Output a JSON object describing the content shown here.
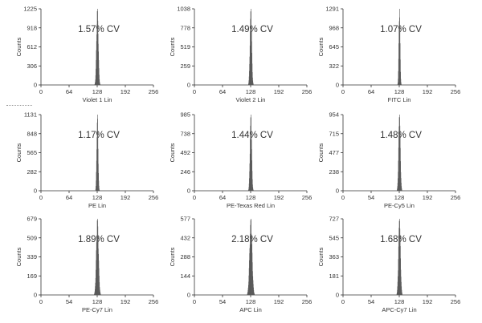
{
  "figure": {
    "ylabel": "Counts",
    "colors": {
      "histogram": "#5a5a5a",
      "axis": "#333333",
      "background": "#ffffff"
    }
  },
  "chart_data": [
    {
      "type": "bar",
      "title": "1.57% CV",
      "xlabel": "Violet 1 Lin",
      "ylabel": "Counts",
      "xlim": [
        0,
        256
      ],
      "x_ticks": [
        "0",
        "64",
        "128",
        "192",
        "256"
      ],
      "ylim": [
        0,
        1225
      ],
      "y_ticks": [
        "0",
        "306",
        "612",
        "918",
        "1225"
      ],
      "peak_x": 128,
      "peak_count": 1225,
      "cv_percent": 1.57
    },
    {
      "type": "bar",
      "title": "1.49% CV",
      "xlabel": "Violet 2 Lin",
      "ylabel": "Counts",
      "xlim": [
        0,
        256
      ],
      "x_ticks": [
        "0",
        "64",
        "128",
        "192",
        "256"
      ],
      "ylim": [
        0,
        1038
      ],
      "y_ticks": [
        "0",
        "259",
        "519",
        "778",
        "1038"
      ],
      "peak_x": 128,
      "peak_count": 1038,
      "cv_percent": 1.49
    },
    {
      "type": "bar",
      "title": "1.07% CV",
      "xlabel": "FITC Lin",
      "ylabel": "Counts",
      "xlim": [
        0,
        256
      ],
      "x_ticks": [
        "0",
        "64",
        "128",
        "192",
        "256"
      ],
      "ylim": [
        0,
        1291
      ],
      "y_ticks": [
        "0",
        "322",
        "645",
        "968",
        "1291"
      ],
      "peak_x": 128,
      "peak_count": 1291,
      "cv_percent": 1.07
    },
    {
      "type": "bar",
      "title": "1.17% CV",
      "xlabel": "PE Lin",
      "ylabel": "Counts",
      "xlim": [
        0,
        256
      ],
      "x_ticks": [
        "0",
        "64",
        "128",
        "192",
        "256"
      ],
      "ylim": [
        0,
        1131
      ],
      "y_ticks": [
        "0",
        "282",
        "565",
        "848",
        "1131"
      ],
      "peak_x": 128,
      "peak_count": 1131,
      "cv_percent": 1.17
    },
    {
      "type": "bar",
      "title": "1.44% CV",
      "xlabel": "PE-Texas Red Lin",
      "ylabel": "Counts",
      "xlim": [
        0,
        256
      ],
      "x_ticks": [
        "0",
        "64",
        "128",
        "192",
        "256"
      ],
      "ylim": [
        0,
        985
      ],
      "y_ticks": [
        "0",
        "246",
        "492",
        "738",
        "985"
      ],
      "peak_x": 128,
      "peak_count": 985,
      "cv_percent": 1.44
    },
    {
      "type": "bar",
      "title": "1.48% CV",
      "xlabel": "PE-Cy5 Lin",
      "ylabel": "Counts",
      "xlim": [
        0,
        256
      ],
      "x_ticks": [
        "0",
        "54",
        "128",
        "192",
        "256"
      ],
      "ylim": [
        0,
        954
      ],
      "y_ticks": [
        "0",
        "238",
        "477",
        "715",
        "954"
      ],
      "peak_x": 128,
      "peak_count": 954,
      "cv_percent": 1.48
    },
    {
      "type": "bar",
      "title": "1.89% CV",
      "xlabel": "PE-Cy7 Lin",
      "ylabel": "Counts",
      "xlim": [
        0,
        256
      ],
      "x_ticks": [
        "0",
        "54",
        "128",
        "192",
        "256"
      ],
      "ylim": [
        0,
        679
      ],
      "y_ticks": [
        "0",
        "169",
        "339",
        "509",
        "679"
      ],
      "peak_x": 128,
      "peak_count": 679,
      "cv_percent": 1.89
    },
    {
      "type": "bar",
      "title": "2.18% CV",
      "xlabel": "APC Lin",
      "ylabel": "Counts",
      "xlim": [
        0,
        256
      ],
      "x_ticks": [
        "0",
        "54",
        "128",
        "192",
        "256"
      ],
      "ylim": [
        0,
        577
      ],
      "y_ticks": [
        "0",
        "144",
        "288",
        "432",
        "577"
      ],
      "peak_x": 128,
      "peak_count": 577,
      "cv_percent": 2.18
    },
    {
      "type": "bar",
      "title": "1.68% CV",
      "xlabel": "APC-Cy7 Lin",
      "ylabel": "Counts",
      "xlim": [
        0,
        256
      ],
      "x_ticks": [
        "0",
        "54",
        "128",
        "192",
        "256"
      ],
      "ylim": [
        0,
        727
      ],
      "y_ticks": [
        "0",
        "181",
        "363",
        "545",
        "727"
      ],
      "peak_x": 128,
      "peak_count": 727,
      "cv_percent": 1.68
    }
  ]
}
